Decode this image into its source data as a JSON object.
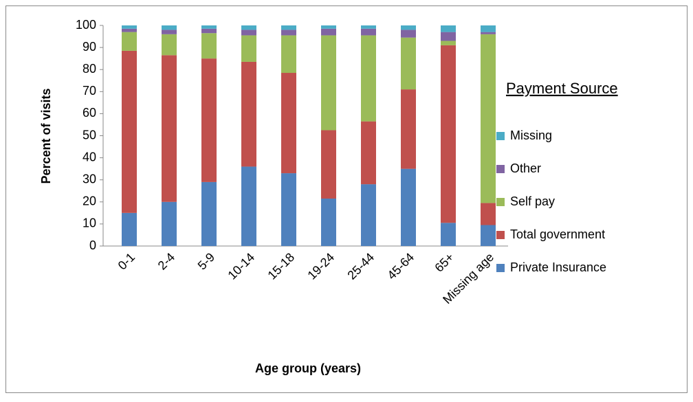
{
  "chart_data": {
    "type": "stacked_bar",
    "y_label": "Percent of visits",
    "x_label": "Age group (years)",
    "legend_title": "Payment Source",
    "categories": [
      "0-1",
      "2-4",
      "5-9",
      "10-14",
      "15-18",
      "19-24",
      "25-44",
      "45-64",
      "65+",
      "Missing age"
    ],
    "series": [
      {
        "name": "Private Insurance",
        "color": "#4F81BD",
        "values": [
          15,
          20,
          29,
          36,
          33,
          21.5,
          28,
          35,
          10.5,
          9.5
        ]
      },
      {
        "name": "Total government",
        "color": "#C0504D",
        "values": [
          73.5,
          66.5,
          56,
          47.5,
          45.5,
          31,
          28.5,
          36,
          80.5,
          10
        ]
      },
      {
        "name": "Self pay",
        "color": "#9BBB59",
        "values": [
          8.5,
          9.5,
          11.5,
          12,
          17,
          43,
          39,
          23.5,
          2,
          76.5
        ]
      },
      {
        "name": "Other",
        "color": "#8064A2",
        "values": [
          1.5,
          2,
          2,
          2.5,
          2.5,
          3,
          3,
          3.5,
          4,
          1
        ]
      },
      {
        "name": "Missing",
        "color": "#4BACC6",
        "values": [
          1.5,
          2,
          1.5,
          2,
          2,
          1.5,
          1.5,
          2,
          3,
          3
        ]
      }
    ],
    "ylim": [
      0,
      100
    ],
    "yticks": [
      0,
      10,
      20,
      30,
      40,
      50,
      60,
      70,
      80,
      90,
      100
    ],
    "grid": false,
    "legend": "right"
  }
}
